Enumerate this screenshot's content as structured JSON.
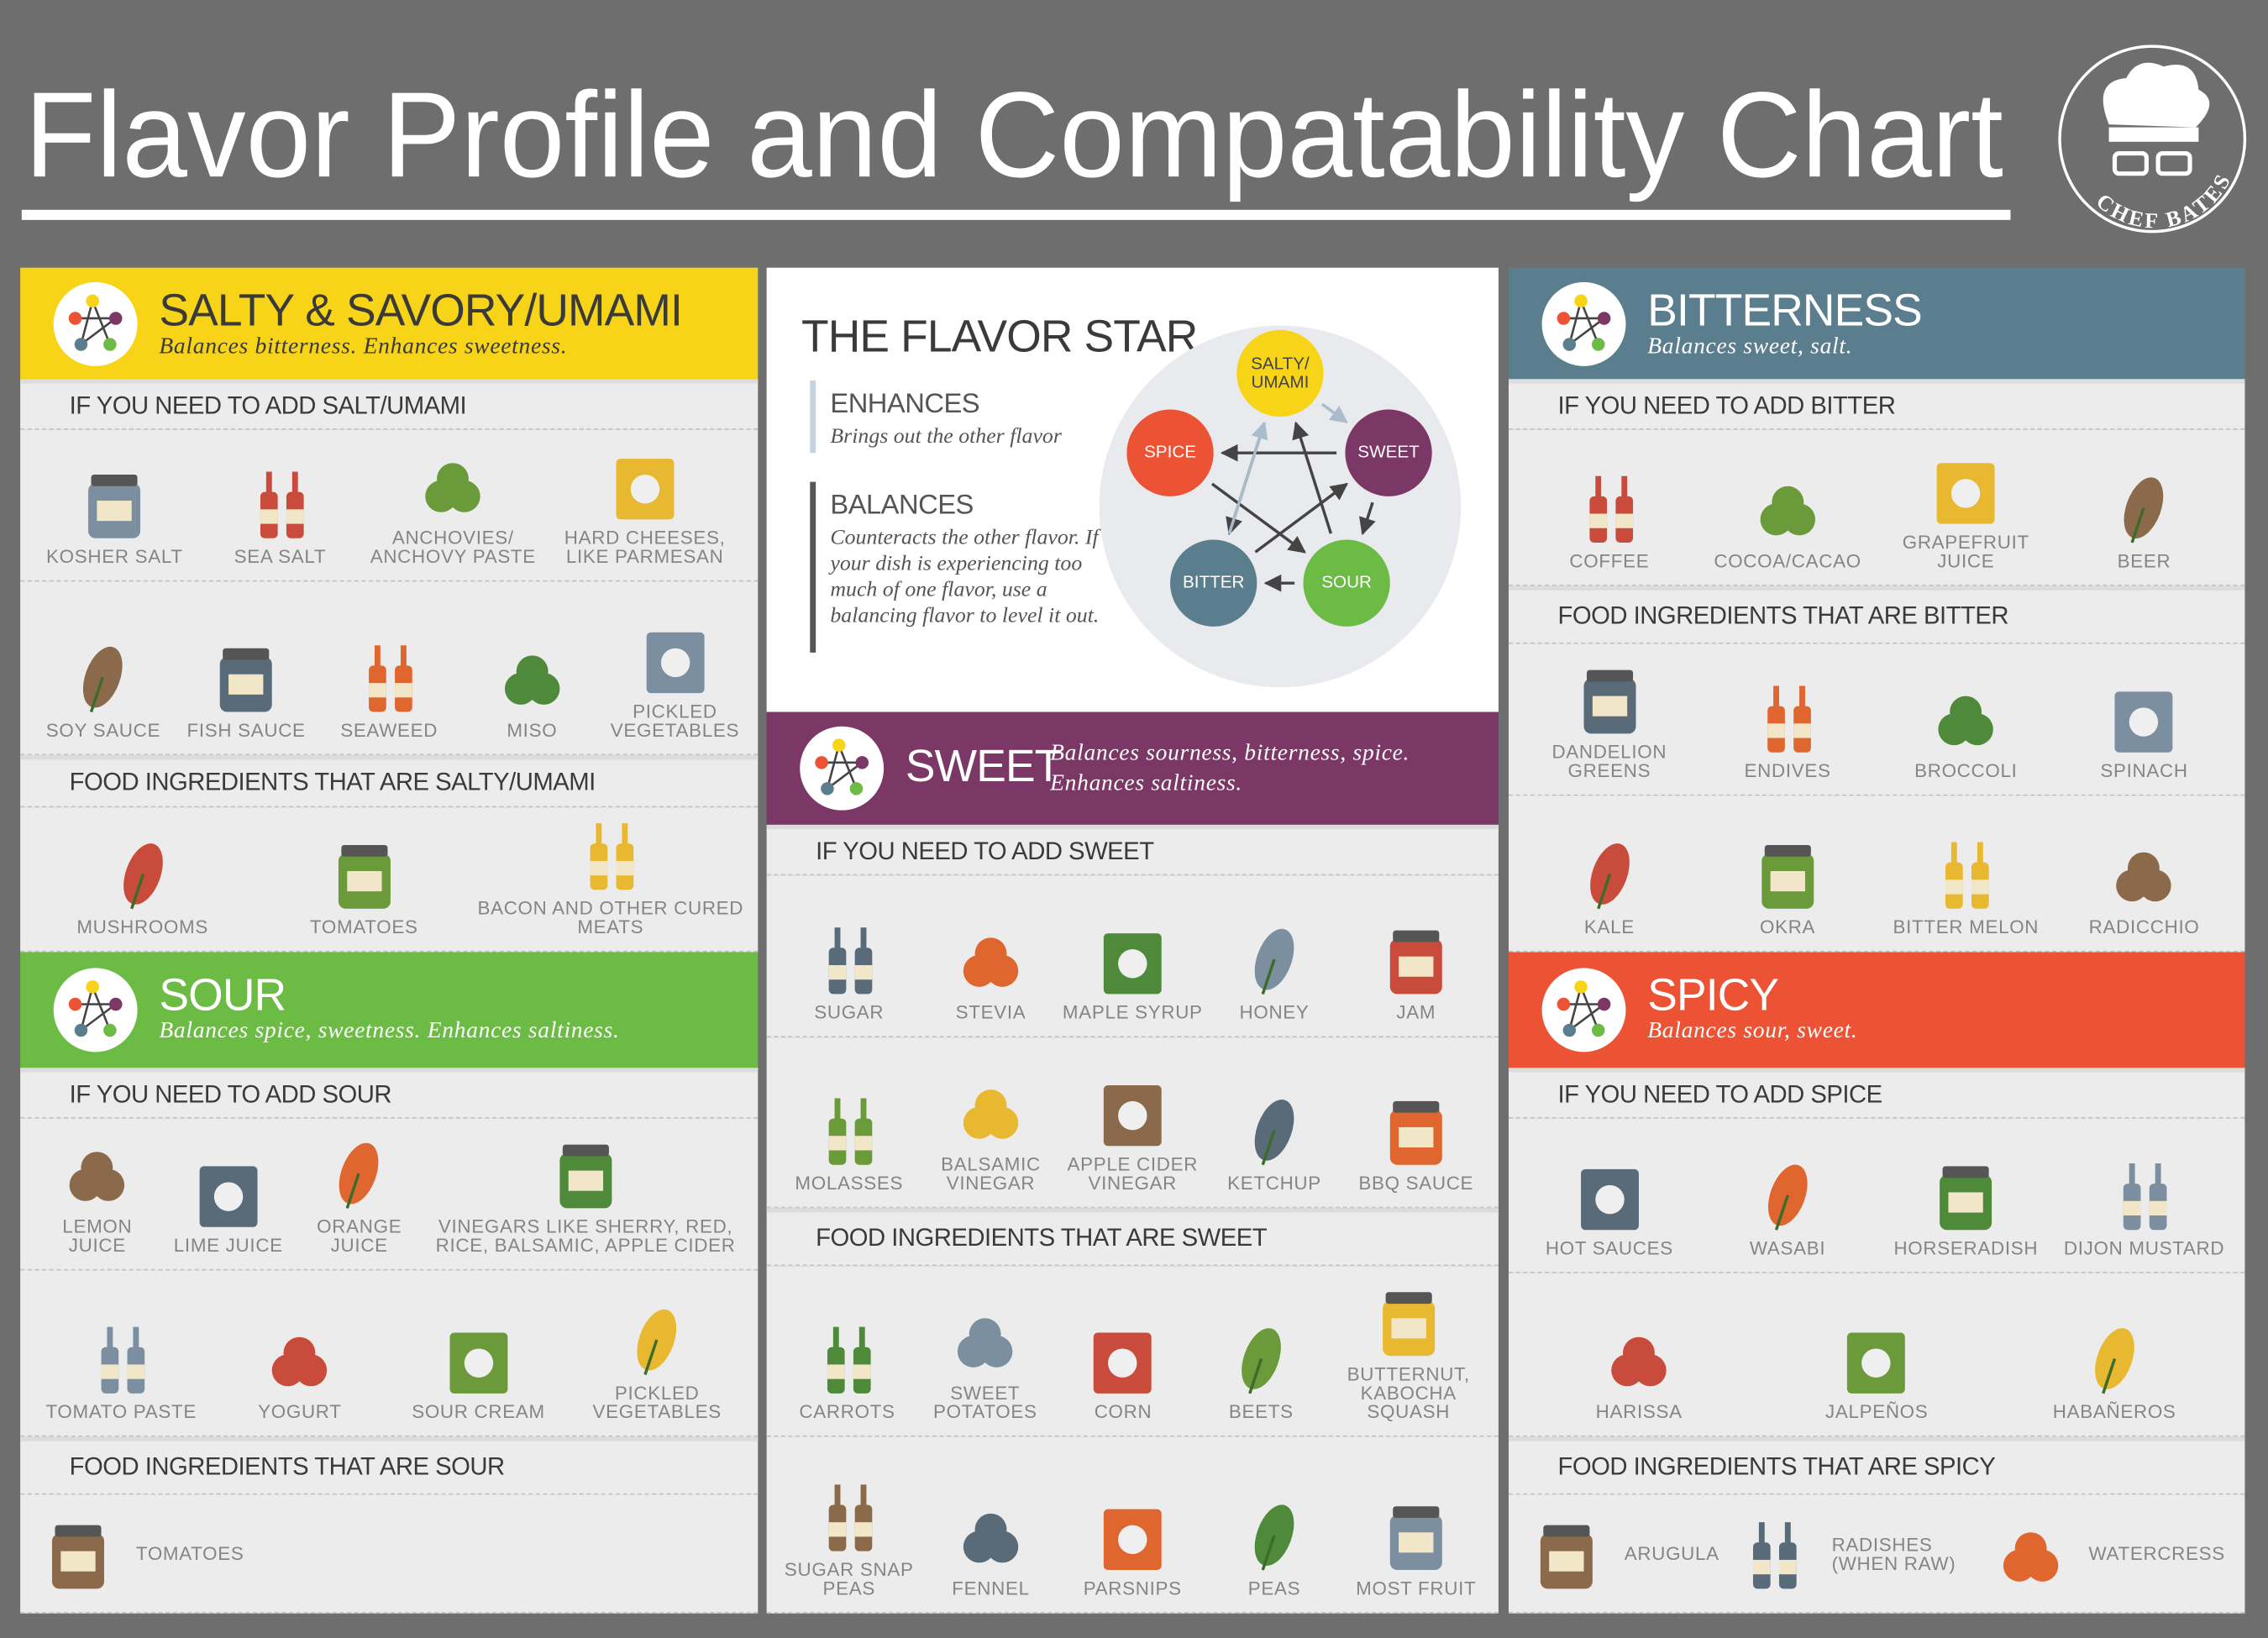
{
  "header": {
    "title": "Flavor Profile and Compatability Chart",
    "logo": "CHEF BATES"
  },
  "columns": [
    [
      {
        "title": "SALTY & SAVORY/UMAMI",
        "subtitle": "Balances bitterness. Enhances sweetness."
      },
      "IF YOU NEED TO ADD SALT/UMAMI",
      [
        "KOSHER SALT",
        "SEA SALT",
        "ANCHOVIES/ ANCHOVY PASTE",
        "HARD CHEESES, LIKE PARMESAN"
      ],
      [
        "SOY SAUCE",
        "FISH SAUCE",
        "SEAWEED",
        "MISO",
        "PICKLED VEGETABLES"
      ],
      "FOOD INGREDIENTS THAT ARE SALTY/UMAMI",
      [
        "MUSHROOMS",
        "TOMATOES",
        "BACON AND OTHER CURED MEATS"
      ],
      {
        "title": "SOUR",
        "subtitle": "Balances spice, sweetness. Enhances saltiness."
      },
      "IF YOU NEED TO ADD SOUR",
      [
        "LEMON JUICE",
        "LIME JUICE",
        "ORANGE JUICE",
        "VINEGARS LIKE SHERRY, RED, RICE, BALSAMIC, APPLE CIDER"
      ],
      [
        "TOMATO PASTE",
        "YOGURT",
        "SOUR CREAM",
        "PICKLED VEGETABLES"
      ],
      "FOOD INGREDIENTS THAT ARE SOUR",
      [
        "TOMATOES"
      ]
    ],
    [
      {
        "star": {
          "title": "THE FLAVOR STAR",
          "legend": [
            {
              "term": "ENHANCES",
              "text": "Brings out the other flavor"
            },
            {
              "term": "BALANCES",
              "text": "Counteracts the other flavor. If your dish is experiencing too much of one flavor, use a balancing flavor to level it out."
            }
          ],
          "nodes": [
            "SALTY/ UMAMI",
            "SWEET",
            "SOUR",
            "BITTER",
            "SPICE"
          ]
        }
      },
      {
        "title": "SWEET",
        "subtitle": "Balances sourness, bitterness, spice. Enhances saltiness."
      },
      "IF YOU NEED TO ADD SWEET",
      [
        "SUGAR",
        "STEVIA",
        "MAPLE SYRUP",
        "HONEY",
        "JAM"
      ],
      [
        "MOLASSES",
        "BALSAMIC VINEGAR",
        "APPLE CIDER VINEGAR",
        "KETCHUP",
        "BBQ SAUCE"
      ],
      "FOOD INGREDIENTS THAT ARE SWEET",
      [
        "CARROTS",
        "SWEET POTATOES",
        "CORN",
        "BEETS",
        "BUTTERNUT, KABOCHA SQUASH"
      ],
      [
        "SUGAR SNAP PEAS",
        "FENNEL",
        "PARSNIPS",
        "PEAS",
        "MOST FRUIT"
      ]
    ],
    [
      {
        "title": "BITTERNESS",
        "subtitle": "Balances sweet, salt."
      },
      "IF YOU NEED TO ADD BITTER",
      [
        "COFFEE",
        "COCOA/CACAO",
        "GRAPEFRUIT JUICE",
        "BEER"
      ],
      "FOOD INGREDIENTS THAT ARE BITTER",
      [
        "DANDELION GREENS",
        "ENDIVES",
        "BROCCOLI",
        "SPINACH"
      ],
      [
        "KALE",
        "OKRA",
        "BITTER MELON",
        "RADICCHIO"
      ],
      {
        "title": "SPICY",
        "subtitle": "Balances sour, sweet."
      },
      "IF YOU NEED TO ADD SPICE",
      [
        "HOT SAUCES",
        "WASABI",
        "HORSERADISH",
        "DIJON MUSTARD"
      ],
      [
        "HARISSA",
        "JALPEÑOS",
        "HABAÑEROS"
      ],
      "FOOD INGREDIENTS THAT ARE SPICY",
      [
        "ARUGULA",
        "RADISHES (WHEN RAW)",
        "WATERCRESS"
      ]
    ]
  ]
}
